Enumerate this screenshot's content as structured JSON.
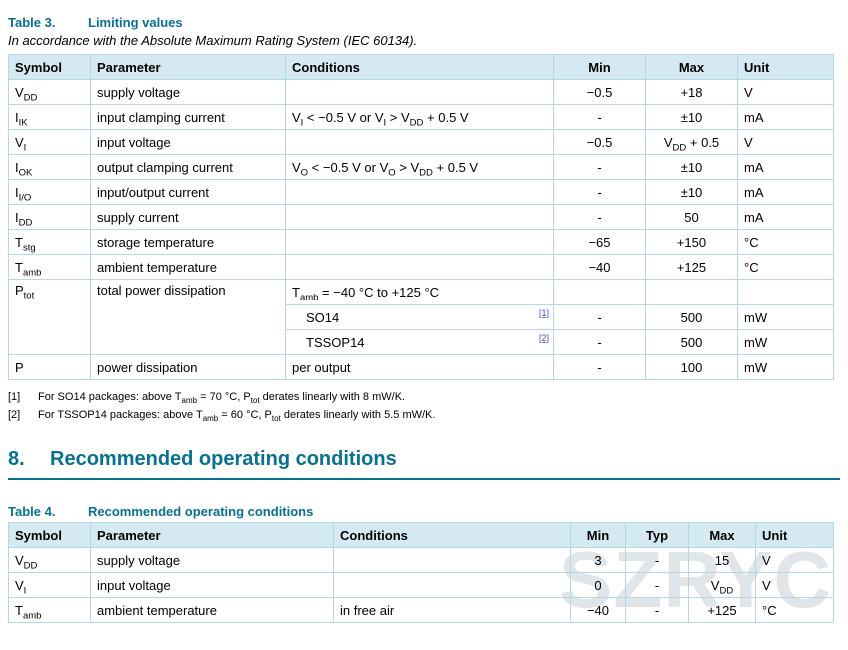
{
  "colors": {
    "accent": "#077191",
    "link": "#4b49cf",
    "header_bg": "#d5e9f2",
    "border": "#b3d7e5",
    "watermark": "#c6d1d7"
  },
  "table3": {
    "label": "Table 3.",
    "title": "Limiting values",
    "subtitle": "In accordance with the Absolute Maximum Rating System (IEC 60134).",
    "headers": {
      "symbol": "Symbol",
      "parameter": "Parameter",
      "conditions": "Conditions",
      "min": "Min",
      "max": "Max",
      "unit": "Unit"
    },
    "rows": [
      {
        "symbol": "V~DD~",
        "parameter": "supply voltage",
        "conditions": "",
        "min": "−0.5",
        "max": "+18",
        "unit": "V"
      },
      {
        "symbol": "I~IK~",
        "parameter": "input clamping current",
        "conditions": "V~I~ < −0.5 V or V~I~ > V~DD~ + 0.5 V",
        "min": "-",
        "max": "±10",
        "unit": "mA"
      },
      {
        "symbol": "V~I~",
        "parameter": "input voltage",
        "conditions": "",
        "min": "−0.5",
        "max": "V~DD~ + 0.5",
        "unit": "V"
      },
      {
        "symbol": "I~OK~",
        "parameter": "output clamping current",
        "conditions": "V~O~ < −0.5 V or V~O~ > V~DD~ + 0.5 V",
        "min": "-",
        "max": "±10",
        "unit": "mA"
      },
      {
        "symbol": "I~I/O~",
        "parameter": "input/output current",
        "conditions": "",
        "min": "-",
        "max": "±10",
        "unit": "mA"
      },
      {
        "symbol": "I~DD~",
        "parameter": "supply current",
        "conditions": "",
        "min": "-",
        "max": "50",
        "unit": "mA"
      },
      {
        "symbol": "T~stg~",
        "parameter": "storage temperature",
        "conditions": "",
        "min": "−65",
        "max": "+150",
        "unit": "°C"
      },
      {
        "symbol": "T~amb~",
        "parameter": "ambient temperature",
        "conditions": "",
        "min": "−40",
        "max": "+125",
        "unit": "°C"
      }
    ],
    "ptot": {
      "symbol": "P~tot~",
      "parameter": "total power dissipation",
      "rows": [
        {
          "conditions": "T~amb~ = −40 °C to +125 °C",
          "ref": "",
          "min": "",
          "max": "",
          "unit": ""
        },
        {
          "conditions": "SO14",
          "ref": "[1]",
          "min": "-",
          "max": "500",
          "unit": "mW"
        },
        {
          "conditions": "TSSOP14",
          "ref": "[2]",
          "min": "-",
          "max": "500",
          "unit": "mW"
        }
      ]
    },
    "p_row": {
      "symbol": "P",
      "parameter": "power dissipation",
      "conditions": "per output",
      "min": "-",
      "max": "100",
      "unit": "mW"
    },
    "footnotes": [
      {
        "ref": "[1]",
        "text": "For SO14 packages: above T~amb~ = 70 °C, P~tot~ derates linearly with 8 mW/K."
      },
      {
        "ref": "[2]",
        "text": "For TSSOP14 packages: above T~amb~ = 60 °C, P~tot~ derates linearly with 5.5 mW/K."
      }
    ]
  },
  "section8": {
    "number": "8.",
    "title": "Recommended operating conditions"
  },
  "table4": {
    "label": "Table 4.",
    "title": "Recommended operating conditions",
    "headers": {
      "symbol": "Symbol",
      "parameter": "Parameter",
      "conditions": "Conditions",
      "min": "Min",
      "typ": "Typ",
      "max": "Max",
      "unit": "Unit"
    },
    "rows": [
      {
        "symbol": "V~DD~",
        "parameter": "supply voltage",
        "conditions": "",
        "min": "3",
        "typ": "-",
        "max": "15",
        "unit": "V"
      },
      {
        "symbol": "V~I~",
        "parameter": "input voltage",
        "conditions": "",
        "min": "0",
        "typ": "-",
        "max": "V~DD~",
        "unit": "V"
      },
      {
        "symbol": "T~amb~",
        "parameter": "ambient temperature",
        "conditions": "in free air",
        "min": "−40",
        "typ": "-",
        "max": "+125",
        "unit": "°C"
      }
    ]
  },
  "watermark": "SZRYC"
}
